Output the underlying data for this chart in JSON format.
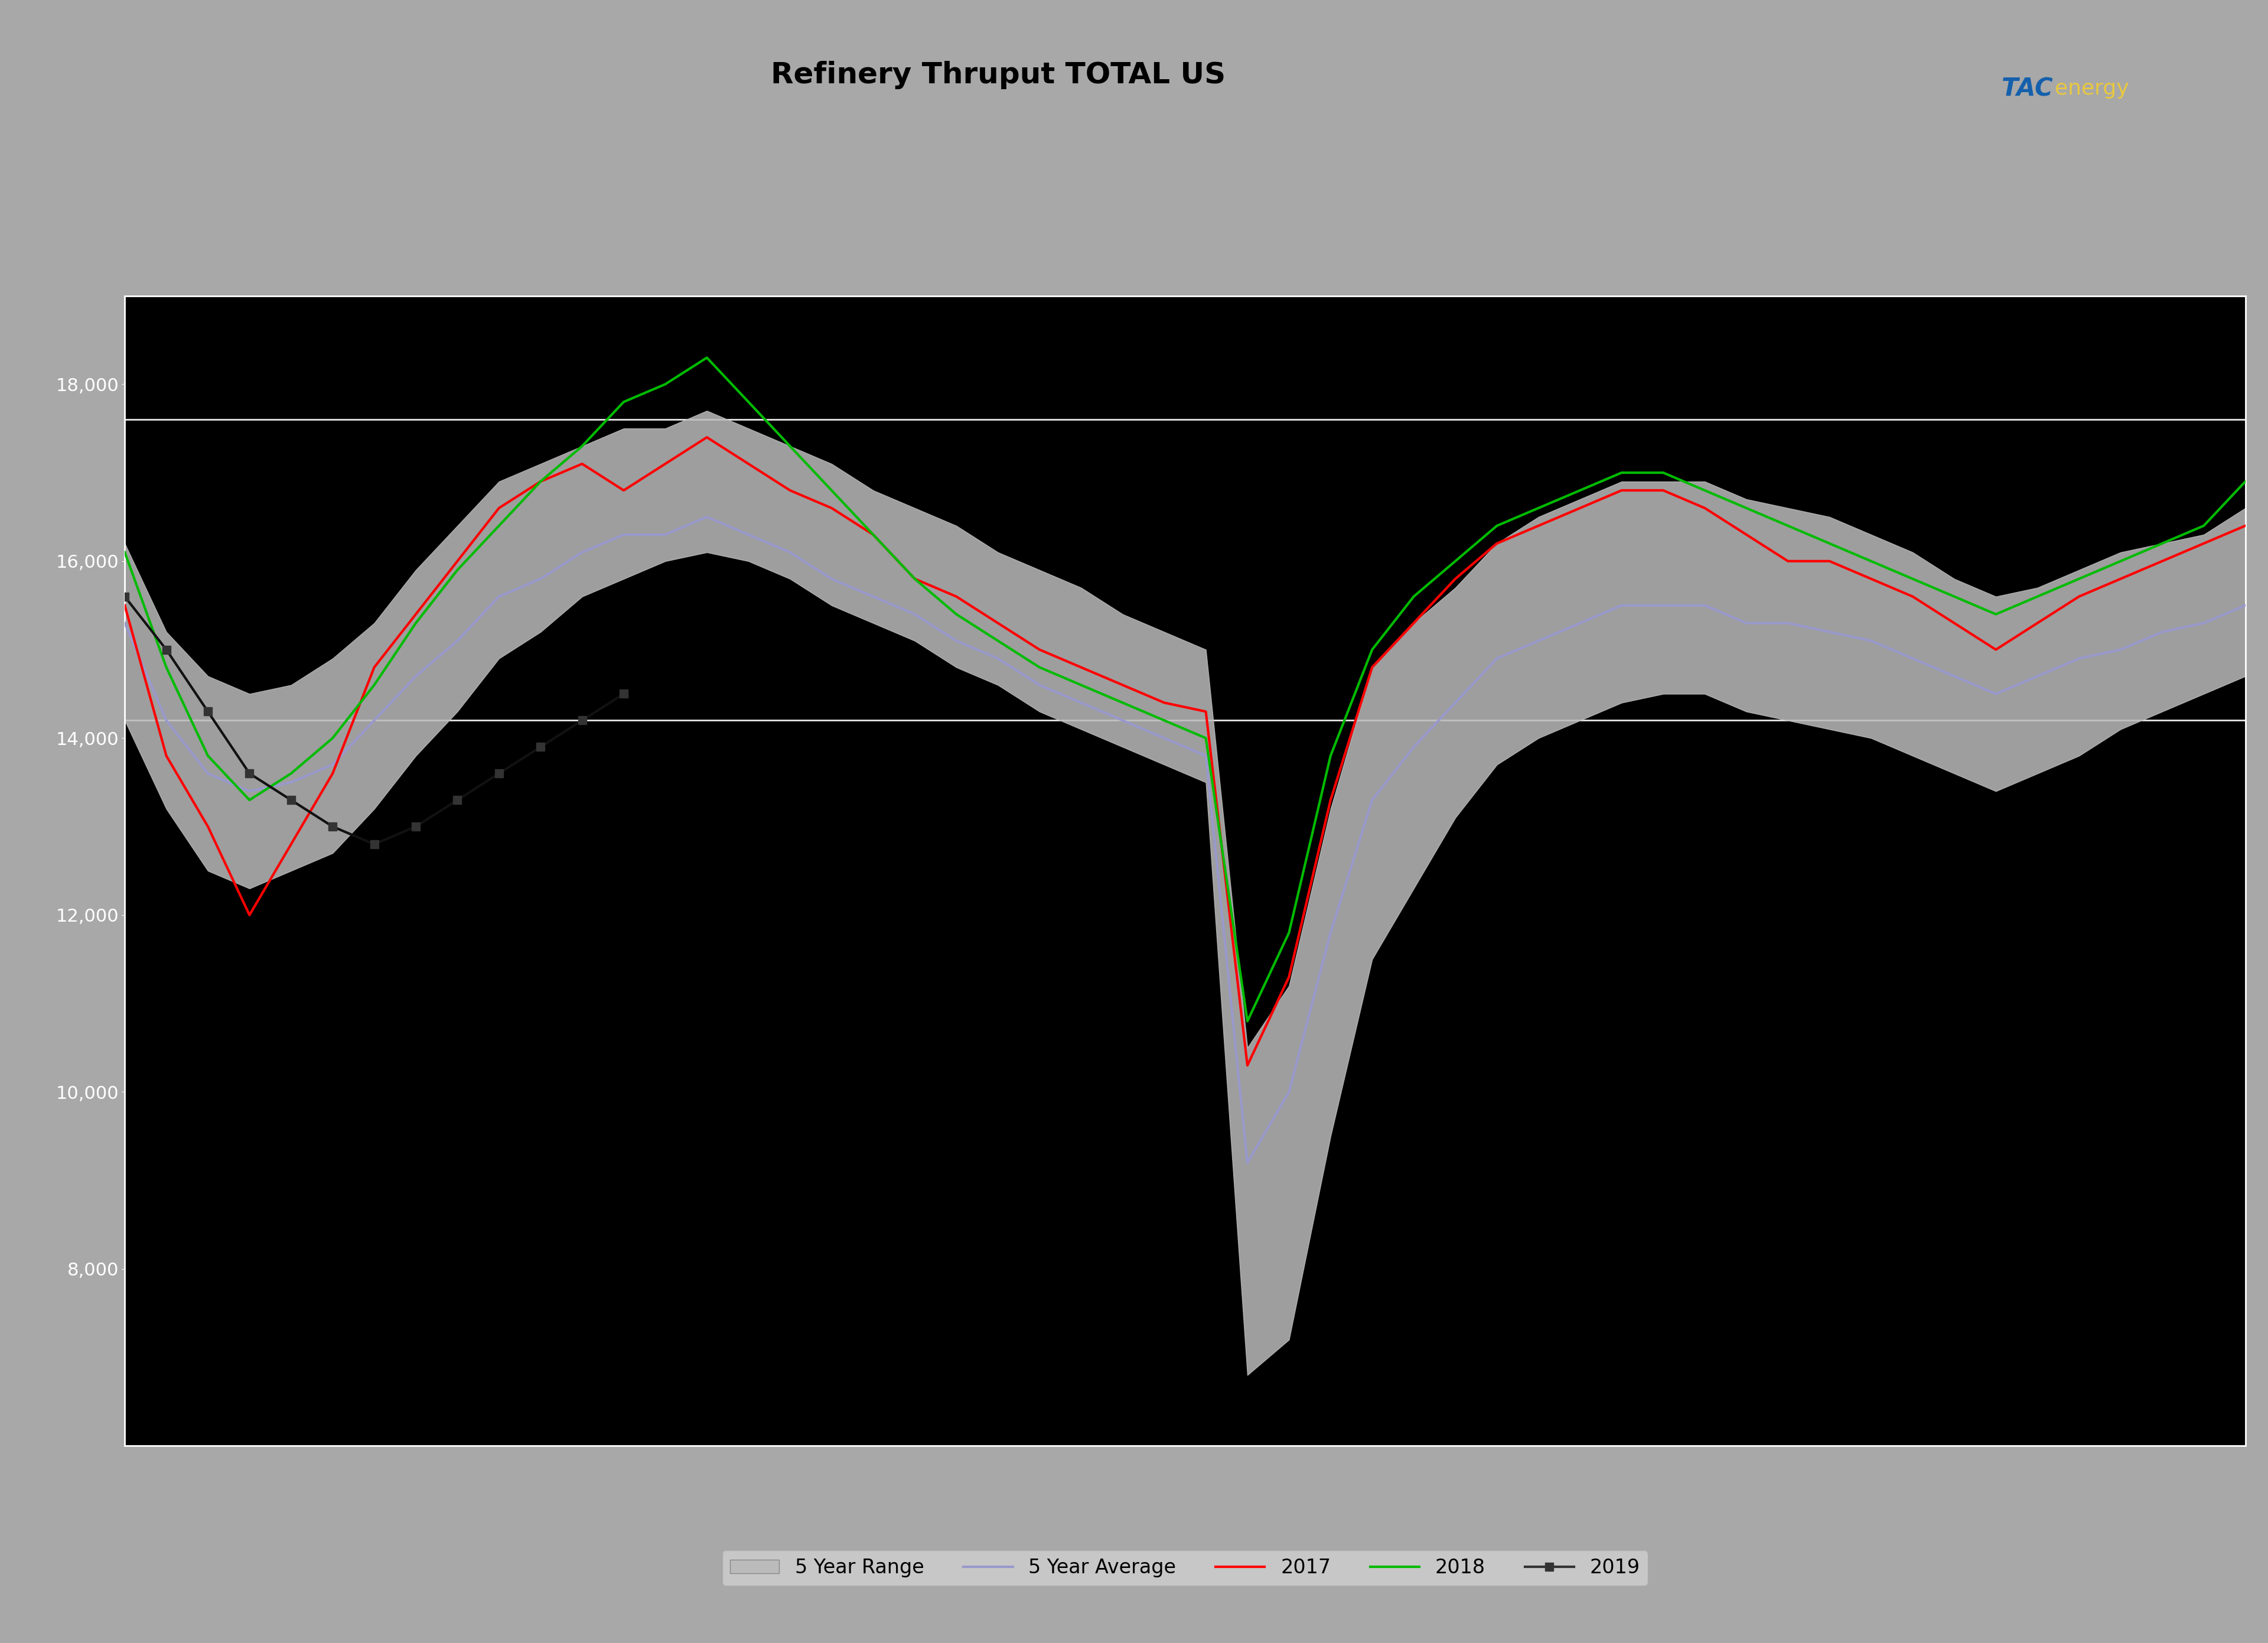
{
  "title": "Refinery Thruput TOTAL US",
  "background_outer": "#a8a8a8",
  "background_chart": "#000000",
  "banner_color": "#1560ac",
  "title_color": "#000000",
  "title_fontsize": 36,
  "ytick_color": "#ffffff",
  "hline_color": "#ffffff",
  "ylim": [
    6000,
    19000
  ],
  "yticks": [
    8000,
    10000,
    12000,
    14000,
    16000,
    18000
  ],
  "hlines": [
    17600,
    14200
  ],
  "weeks": 52,
  "range_low": [
    14200,
    13200,
    12500,
    12300,
    12500,
    12700,
    13200,
    13800,
    14300,
    14900,
    15200,
    15600,
    15800,
    16000,
    16100,
    16000,
    15800,
    15500,
    15300,
    15100,
    14800,
    14600,
    14300,
    14100,
    13900,
    13700,
    13500,
    6800,
    7200,
    9500,
    11500,
    12300,
    13100,
    13700,
    14000,
    14200,
    14400,
    14500,
    14500,
    14300,
    14200,
    14100,
    14000,
    13800,
    13600,
    13400,
    13600,
    13800,
    14100,
    14300,
    14500,
    14700
  ],
  "range_high": [
    16200,
    15200,
    14700,
    14500,
    14600,
    14900,
    15300,
    15900,
    16400,
    16900,
    17100,
    17300,
    17500,
    17500,
    17700,
    17500,
    17300,
    17100,
    16800,
    16600,
    16400,
    16100,
    15900,
    15700,
    15400,
    15200,
    15000,
    10500,
    11200,
    13200,
    14800,
    15300,
    15700,
    16200,
    16500,
    16700,
    16900,
    16900,
    16900,
    16700,
    16600,
    16500,
    16300,
    16100,
    15800,
    15600,
    15700,
    15900,
    16100,
    16200,
    16300,
    16600
  ],
  "avg_5yr": [
    15300,
    14200,
    13600,
    13400,
    13500,
    13700,
    14200,
    14700,
    15100,
    15600,
    15800,
    16100,
    16300,
    16300,
    16500,
    16300,
    16100,
    15800,
    15600,
    15400,
    15100,
    14900,
    14600,
    14400,
    14200,
    14000,
    13800,
    9200,
    10000,
    11800,
    13300,
    13900,
    14400,
    14900,
    15100,
    15300,
    15500,
    15500,
    15500,
    15300,
    15300,
    15200,
    15100,
    14900,
    14700,
    14500,
    14700,
    14900,
    15000,
    15200,
    15300,
    15500
  ],
  "y2017": [
    15500,
    13800,
    13000,
    12000,
    12800,
    13600,
    14800,
    15400,
    16000,
    16600,
    16900,
    17100,
    16800,
    17100,
    17400,
    17100,
    16800,
    16600,
    16300,
    15800,
    15600,
    15300,
    15000,
    14800,
    14600,
    14400,
    14300,
    10300,
    11300,
    13300,
    14800,
    15300,
    15800,
    16200,
    16400,
    16600,
    16800,
    16800,
    16600,
    16300,
    16000,
    16000,
    15800,
    15600,
    15300,
    15000,
    15300,
    15600,
    15800,
    16000,
    16200,
    16400
  ],
  "y2018": [
    16100,
    14800,
    13800,
    13300,
    13600,
    14000,
    14600,
    15300,
    15900,
    16400,
    16900,
    17300,
    17800,
    18000,
    18300,
    17800,
    17300,
    16800,
    16300,
    15800,
    15400,
    15100,
    14800,
    14600,
    14400,
    14200,
    14000,
    10800,
    11800,
    13800,
    15000,
    15600,
    16000,
    16400,
    16600,
    16800,
    17000,
    17000,
    16800,
    16600,
    16400,
    16200,
    16000,
    15800,
    15600,
    15400,
    15600,
    15800,
    16000,
    16200,
    16400,
    16900
  ],
  "y2019": [
    15600,
    15000,
    14300,
    13600,
    13300,
    13000,
    12800,
    13000,
    13300,
    13600,
    13900,
    14200,
    14500,
    null,
    null,
    null,
    null,
    null,
    null,
    null,
    null,
    null,
    null,
    null,
    null,
    null,
    null,
    null,
    null,
    null,
    null,
    null,
    null,
    null,
    null,
    null,
    null,
    null,
    null,
    null,
    null,
    null,
    null,
    null,
    null,
    null,
    null,
    null,
    null,
    null,
    null,
    null
  ],
  "legend_labels": [
    "5 Year Range",
    "5 Year Average",
    "2017",
    "2018",
    "2019"
  ],
  "avg_color": "#9999cc",
  "y2017_color": "#ff0000",
  "y2018_color": "#00bb00",
  "y2019_color": "#111111",
  "range_fill_color": "#bbbbbb",
  "range_fill_alpha": 0.85,
  "gold_line_color": "#e8c840",
  "tac_color_white": "#ffffff",
  "tac_color_red": "#cc0000",
  "tac_color_blue": "#1560ac",
  "tac_color_yellow": "#e8c840",
  "legend_bg": "#d0d0d0"
}
